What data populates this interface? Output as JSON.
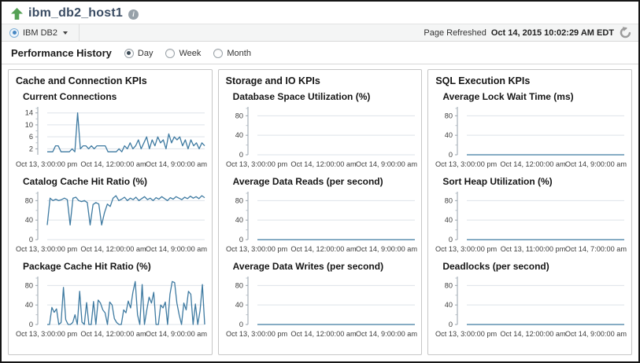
{
  "header": {
    "title": "ibm_db2_host1",
    "up_arrow_color": "#55a155",
    "info_icon_label": "i"
  },
  "context_bar": {
    "target_label": "IBM DB2",
    "refresh_label": "Page Refreshed",
    "refresh_time": "Oct 14, 2015 10:02:29 AM EDT"
  },
  "perf": {
    "title": "Performance History",
    "options": [
      {
        "label": "Day",
        "selected": true
      },
      {
        "label": "Week",
        "selected": false
      },
      {
        "label": "Month",
        "selected": false
      }
    ]
  },
  "colors": {
    "line": "#3e7aa1",
    "grid": "#dde3e9",
    "axis": "#97a1ab",
    "tick_text": "#3c3c3c"
  },
  "panels": [
    {
      "title": "Cache and Connection KPIs",
      "charts": [
        {
          "type": "line",
          "title": "Current Connections",
          "y_ticks": [
            2,
            6,
            10,
            14
          ],
          "y_minor": [
            4,
            8,
            12,
            15.5
          ],
          "y_max": 15.5,
          "x_labels": [
            "Oct 13, 3:00:00 pm",
            "Oct 14, 12:00:00 am",
            "Oct 14, 9:00:00 am"
          ],
          "values": [
            1,
            1,
            1,
            3,
            3,
            1,
            1,
            1,
            1,
            2,
            1,
            14,
            2,
            3,
            3,
            2,
            3,
            2,
            3,
            3,
            3,
            3,
            1,
            1,
            1,
            1,
            2,
            1,
            3,
            2,
            4,
            2,
            3,
            5,
            2,
            4,
            6,
            2,
            5,
            3,
            6,
            4,
            5,
            2,
            7,
            4,
            6,
            5,
            6,
            3,
            5,
            2,
            5,
            3,
            4,
            2,
            4,
            3
          ]
        },
        {
          "type": "line",
          "title": "Catalog Cache Hit Ratio (%)",
          "y_ticks": [
            0,
            40,
            80
          ],
          "y_minor": [
            20,
            60,
            95
          ],
          "y_max": 95,
          "x_labels": [
            "Oct 13, 3:00:00 pm",
            "Oct 14, 12:00:00 am",
            "Oct 14, 9:00:00 am"
          ],
          "values": [
            30,
            85,
            80,
            83,
            80,
            82,
            85,
            82,
            30,
            85,
            87,
            80,
            78,
            80,
            76,
            30,
            72,
            76,
            73,
            30,
            55,
            73,
            68,
            85,
            90,
            80,
            83,
            87,
            80,
            85,
            82,
            87,
            80,
            84,
            88,
            82,
            85,
            80,
            86,
            83,
            88,
            84,
            80,
            86,
            83,
            88,
            85,
            82,
            87,
            84,
            89,
            85,
            88,
            84,
            90,
            86
          ]
        },
        {
          "type": "line",
          "title": "Package Cache Hit Ratio (%)",
          "y_ticks": [
            0,
            40,
            80
          ],
          "y_minor": [
            20,
            60,
            95
          ],
          "y_max": 95,
          "x_labels": [
            "Oct 13, 3:00:00 pm",
            "Oct 14, 12:00:00 am",
            "Oct 14, 9:00:00 am"
          ],
          "values": [
            0,
            0,
            35,
            25,
            32,
            0,
            4,
            76,
            10,
            0,
            0,
            4,
            20,
            0,
            68,
            5,
            0,
            45,
            0,
            0,
            47,
            0,
            50,
            44,
            30,
            24,
            0,
            46,
            40,
            12,
            4,
            0,
            0,
            30,
            24,
            48,
            34,
            66,
            88,
            20,
            0,
            82,
            0,
            30,
            56,
            44,
            66,
            0,
            0,
            40,
            34,
            46,
            0,
            62,
            88,
            86,
            44,
            20,
            0,
            44,
            30,
            68,
            62,
            0,
            42,
            0,
            28,
            82,
            0
          ]
        }
      ]
    },
    {
      "title": "Storage and IO KPIs",
      "charts": [
        {
          "type": "line",
          "title": "Database Space Utilization (%)",
          "y_ticks": [
            0,
            40,
            80
          ],
          "y_minor": [
            20,
            60,
            95
          ],
          "y_max": 95,
          "x_labels": [
            "Oct 13, 3:00:00 pm",
            "Oct 14, 12:00:00 am",
            "Oct 14, 9:00:00 am"
          ],
          "values": []
        },
        {
          "type": "line",
          "title": "Average Data Reads (per second)",
          "y_ticks": [
            0,
            40,
            80
          ],
          "y_minor": [
            20,
            60,
            95
          ],
          "y_max": 95,
          "x_labels": [
            "Oct 13, 3:00:00 pm",
            "Oct 14, 12:00:00 am",
            "Oct 14, 9:00:00 am"
          ],
          "values": [
            0,
            0
          ]
        },
        {
          "type": "line",
          "title": "Average Data Writes (per second)",
          "y_ticks": [
            0,
            40,
            80
          ],
          "y_minor": [
            20,
            60,
            95
          ],
          "y_max": 95,
          "x_labels": [
            "Oct 13, 3:00:00 pm",
            "Oct 14, 12:00:00 am",
            "Oct 14, 9:00:00 am"
          ],
          "values": [
            0,
            0
          ]
        }
      ]
    },
    {
      "title": "SQL Execution KPIs",
      "charts": [
        {
          "type": "line",
          "title": "Average Lock Wait Time (ms)",
          "y_ticks": [
            0,
            40,
            80
          ],
          "y_minor": [
            20,
            60,
            95
          ],
          "y_max": 95,
          "x_labels": [
            "Oct 13, 3:00:00 pm",
            "Oct 14, 12:00:00 am",
            "Oct 14, 9:00:00 am"
          ],
          "values": [
            0,
            0
          ]
        },
        {
          "type": "line",
          "title": "Sort Heap Utilization (%)",
          "y_ticks": [
            0,
            40,
            80
          ],
          "y_minor": [
            20,
            60,
            95
          ],
          "y_max": 95,
          "x_labels": [
            "Oct 13, 3:00:00 pm",
            "Oct 13, 11:00:00 pm",
            "Oct 14, 7:00:00 am"
          ],
          "values": [
            0,
            0
          ]
        },
        {
          "type": "line",
          "title": "Deadlocks (per second)",
          "y_ticks": [
            0,
            40,
            80
          ],
          "y_minor": [
            20,
            60,
            95
          ],
          "y_max": 95,
          "x_labels": [
            "Oct 13, 3:00:00 pm",
            "Oct 14, 12:00:00 am",
            "Oct 14, 9:00:00 am"
          ],
          "values": [
            0,
            0
          ]
        }
      ]
    }
  ]
}
